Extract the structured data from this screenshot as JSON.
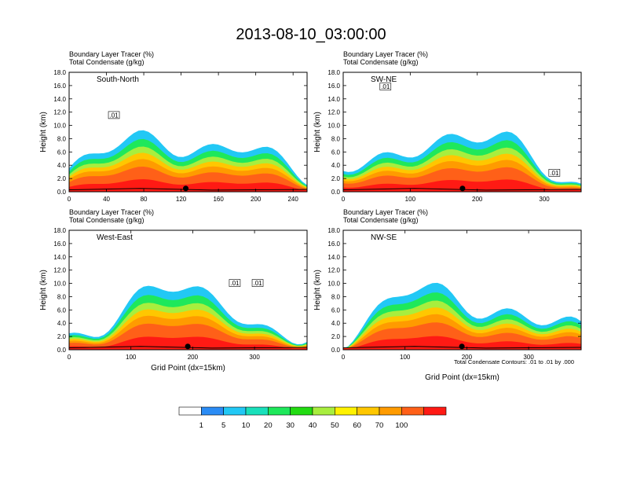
{
  "figure": {
    "title": "2013-08-10_03:00:00",
    "colorbar": {
      "levels": [
        "1",
        "5",
        "10",
        "20",
        "30",
        "40",
        "50",
        "60",
        "70",
        "100"
      ],
      "colors": [
        "#ffffff",
        "#2b8cf5",
        "#22c8f5",
        "#19e0bb",
        "#1ee85b",
        "#22dc12",
        "#a8ee3e",
        "#fff200",
        "#ffc700",
        "#ff9b00",
        "#ff6018",
        "#ff1a14"
      ]
    },
    "contour_note": "Total Condensate Contours: .01 to .01 by .000"
  },
  "chart_data": [
    {
      "type": "heatmap",
      "panel": "South-North",
      "header_lines": [
        "Boundary Layer Tracer   (%)",
        "Total Condensate   (g/kg)"
      ],
      "ylabel": "Height (km)",
      "xlabel": "",
      "xlim": [
        0,
        255
      ],
      "ylim": [
        0,
        18
      ],
      "xticks": [
        "0",
        "40",
        "80",
        "120",
        "160",
        "200",
        "240"
      ],
      "yticks": [
        "0.0",
        "2.0",
        "4.0",
        "6.0",
        "8.0",
        "10.0",
        "12.0",
        "14.0",
        "16.0",
        "18.0"
      ],
      "contour_labels": [
        {
          "x": 48,
          "y": 11.5,
          "text": ".01"
        }
      ],
      "marker_x": 125
    },
    {
      "type": "heatmap",
      "panel": "SW-NE",
      "header_lines": [
        "Boundary Layer Tracer   (%)",
        "Total Condensate   (g/kg)"
      ],
      "ylabel": "Height (km)",
      "xlabel": "",
      "xlim": [
        0,
        355
      ],
      "ylim": [
        0,
        18
      ],
      "xticks": [
        "0",
        "100",
        "200",
        "300"
      ],
      "yticks": [
        "0.0",
        "2.0",
        "4.0",
        "6.0",
        "8.0",
        "10.0",
        "12.0",
        "14.0",
        "16.0",
        "18.0"
      ],
      "contour_labels": [
        {
          "x": 63,
          "y": 15.8,
          "text": ".01"
        },
        {
          "x": 315,
          "y": 2.8,
          "text": ".01"
        }
      ],
      "marker_x": 178
    },
    {
      "type": "heatmap",
      "panel": "West-East",
      "header_lines": [
        "Boundary Layer Tracer   (%)",
        "Total Condensate   (g/kg)"
      ],
      "ylabel": "Height (km)",
      "xlabel": "Grid Point (dx=15km)",
      "xlim": [
        0,
        385
      ],
      "ylim": [
        0,
        18
      ],
      "xticks": [
        "0",
        "100",
        "200",
        "300"
      ],
      "yticks": [
        "0.0",
        "2.0",
        "4.0",
        "6.0",
        "8.0",
        "10.0",
        "12.0",
        "14.0",
        "16.0",
        "18.0"
      ],
      "contour_labels": [
        {
          "x": 268,
          "y": 10.0,
          "text": ".01"
        },
        {
          "x": 305,
          "y": 10.0,
          "text": ".01"
        }
      ],
      "marker_x": 192
    },
    {
      "type": "heatmap",
      "panel": "NW-SE",
      "header_lines": [
        "Boundary Layer Tracer   (%)",
        "Total Condensate   (g/kg)"
      ],
      "ylabel": "Height (km)",
      "xlabel": "Grid Point (dx=15km)",
      "xlim": [
        0,
        385
      ],
      "ylim": [
        0,
        18
      ],
      "xticks": [
        "0",
        "100",
        "200",
        "300"
      ],
      "yticks": [
        "0.0",
        "2.0",
        "4.0",
        "6.0",
        "8.0",
        "10.0",
        "12.0",
        "14.0",
        "16.0",
        "18.0"
      ],
      "contour_labels": [],
      "marker_x": 192
    }
  ]
}
